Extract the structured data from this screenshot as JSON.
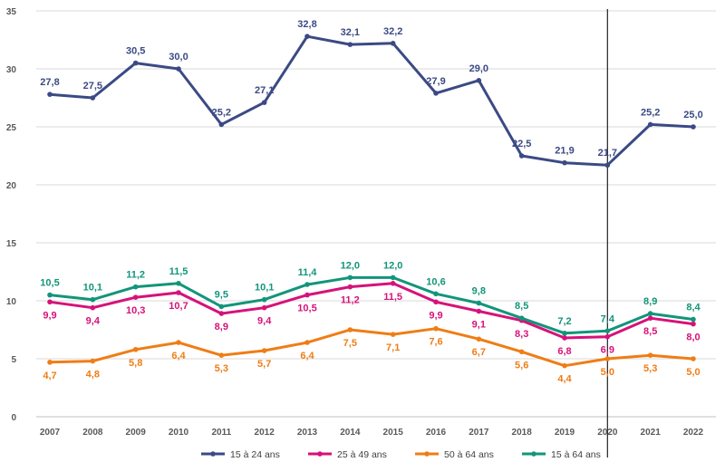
{
  "chart_data": {
    "type": "line",
    "title": "",
    "xlabel": "",
    "ylabel": "",
    "categories": [
      "2007",
      "2008",
      "2009",
      "2010",
      "2011",
      "2012",
      "2013",
      "2014",
      "2015",
      "2016",
      "2017",
      "2018",
      "2019",
      "2020",
      "2021",
      "2022"
    ],
    "ylim": [
      0,
      35
    ],
    "yticks": [
      0,
      5,
      10,
      15,
      20,
      25,
      30,
      35
    ],
    "grid": "horizontal",
    "legend_position": "bottom",
    "vertical_marker_at": "2020",
    "series": [
      {
        "name": "15 à 24 ans",
        "color": "#3b4a85",
        "values": [
          27.8,
          27.5,
          30.5,
          30.0,
          25.2,
          27.1,
          32.8,
          32.1,
          32.2,
          27.9,
          29.0,
          22.5,
          21.9,
          21.7,
          25.2,
          25.0
        ],
        "labels": [
          "27,8",
          "27,5",
          "30,5",
          "30,0",
          "25,2",
          "27,1",
          "32,8",
          "32,1",
          "32,2",
          "27,9",
          "29,0",
          "22,5",
          "21,9",
          "21,7",
          "25,2",
          "25,0"
        ],
        "label_position": "above"
      },
      {
        "name": "25 à 49 ans",
        "color": "#d6127a",
        "values": [
          9.9,
          9.4,
          10.3,
          10.7,
          8.9,
          9.4,
          10.5,
          11.2,
          11.5,
          9.9,
          9.1,
          8.3,
          6.8,
          6.9,
          8.5,
          8.0
        ],
        "labels": [
          "9,9",
          "9,4",
          "10,3",
          "10,7",
          "8,9",
          "9,4",
          "10,5",
          "11,2",
          "11,5",
          "9,9",
          "9,1",
          "8,3",
          "6,8",
          "6,9",
          "8,5",
          "8,0"
        ],
        "label_position": "below"
      },
      {
        "name": "50 à 64 ans",
        "color": "#ef7d15",
        "values": [
          4.7,
          4.8,
          5.8,
          6.4,
          5.3,
          5.7,
          6.4,
          7.5,
          7.1,
          7.6,
          6.7,
          5.6,
          4.4,
          5.0,
          5.3,
          5.0
        ],
        "labels": [
          "4,7",
          "4,8",
          "5,8",
          "6,4",
          "5,3",
          "5,7",
          "6,4",
          "7,5",
          "7,1",
          "7,6",
          "6,7",
          "5,6",
          "4,4",
          "5,0",
          "5,3",
          "5,0"
        ],
        "label_position": "below"
      },
      {
        "name": "15 à 64 ans",
        "color": "#12957a",
        "values": [
          10.5,
          10.1,
          11.2,
          11.5,
          9.5,
          10.1,
          11.4,
          12.0,
          12.0,
          10.6,
          9.8,
          8.5,
          7.2,
          7.4,
          8.9,
          8.4
        ],
        "labels": [
          "10,5",
          "10,1",
          "11,2",
          "11,5",
          "9,5",
          "10,1",
          "11,4",
          "12,0",
          "12,0",
          "10,6",
          "9,8",
          "8,5",
          "7,2",
          "7,4",
          "8,9",
          "8,4"
        ],
        "label_position": "above"
      }
    ]
  }
}
